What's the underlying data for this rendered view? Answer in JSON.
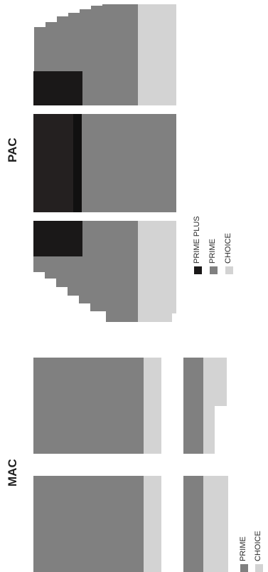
{
  "titles": {
    "mac": "MAC",
    "pac": "PAC"
  },
  "legend_pac": [
    {
      "label": "PRIME PLUS",
      "color": "#1a1818"
    },
    {
      "label": "PRIME",
      "color": "#808080"
    },
    {
      "label": "CHOICE",
      "color": "#d3d3d3"
    }
  ],
  "legend_mac": [
    {
      "label": "PRIME",
      "color": "#808080"
    },
    {
      "label": "CHOICE",
      "color": "#d3d3d3"
    }
  ],
  "colors": {
    "prime_plus": "#1a1818",
    "prime_plus_band": "#242020",
    "prime": "#808080",
    "choice": "#d3d3d3"
  }
}
